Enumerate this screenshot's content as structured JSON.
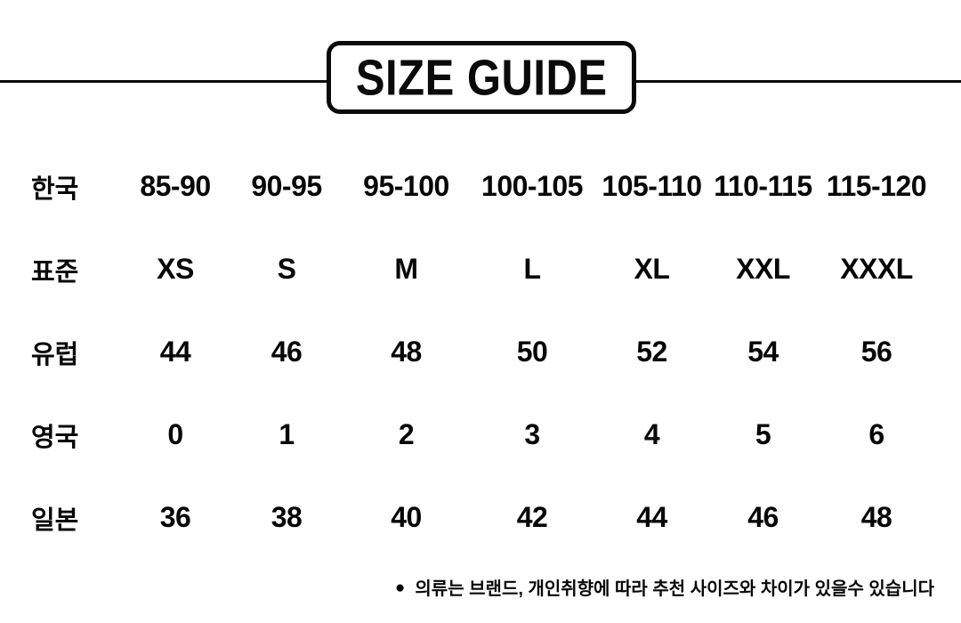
{
  "header": {
    "title": "SIZE GUIDE"
  },
  "colors": {
    "ink": "#0a0a0a",
    "background": "#ffffff"
  },
  "footnote": {
    "bullet": "●",
    "text": "의류는 브랜드, 개인취향에 따라 추천 사이즈와 차이가 있을수 있습니다"
  },
  "chart_data": {
    "type": "table",
    "title": "SIZE GUIDE",
    "row_headers": [
      "한국",
      "표준",
      "유럽",
      "영국",
      "일본"
    ],
    "row_header_meanings": [
      "Korea",
      "Standard",
      "Europe",
      "UK",
      "Japan"
    ],
    "rows": [
      [
        "85-90",
        "90-95",
        "95-100",
        "100-105",
        "105-110",
        "110-115",
        "115-120"
      ],
      [
        "XS",
        "S",
        "M",
        "L",
        "XL",
        "XXL",
        "XXXL"
      ],
      [
        "44",
        "46",
        "48",
        "50",
        "52",
        "54",
        "56"
      ],
      [
        "0",
        "1",
        "2",
        "3",
        "4",
        "5",
        "6"
      ],
      [
        "36",
        "38",
        "40",
        "42",
        "44",
        "46",
        "48"
      ]
    ],
    "note": "● 의류는 브랜드, 개인취향에 따라 추천 사이즈와 차이가 있을수 있습니다",
    "layout": {
      "columns": 7,
      "grid": "off",
      "note_position": "bottom-right"
    }
  }
}
